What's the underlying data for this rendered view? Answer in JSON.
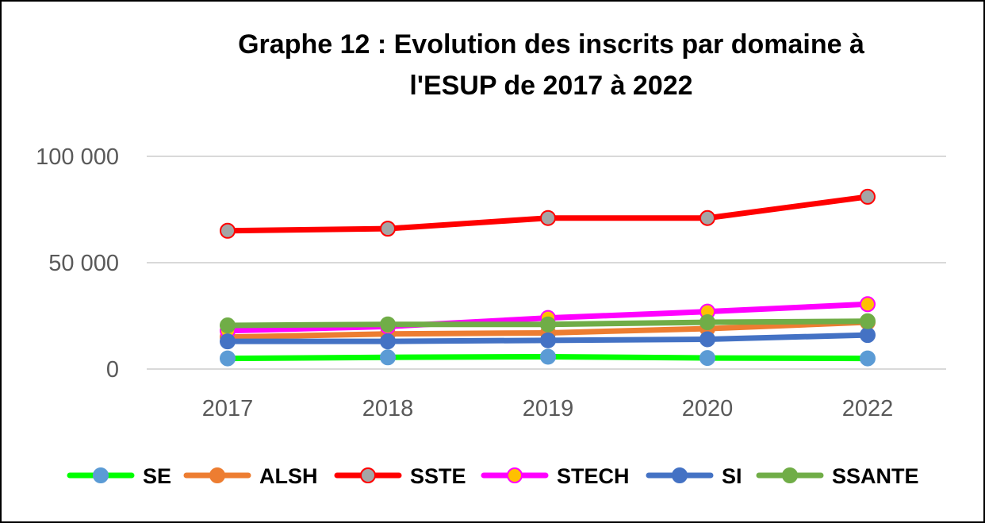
{
  "chart_data": {
    "type": "line",
    "title_lines": [
      "Graphe 12 : Evolution des inscrits par domaine à",
      "l'ESUP de 2017 à 2022"
    ],
    "categories": [
      "2017",
      "2018",
      "2019",
      "2020",
      "2022"
    ],
    "ylim": [
      0,
      100000
    ],
    "yticks": [
      {
        "value": 0,
        "label": "0"
      },
      {
        "value": 50000,
        "label": "50 000"
      },
      {
        "value": 100000,
        "label": "100 000"
      }
    ],
    "grid": true,
    "legend_position": "bottom",
    "series": [
      {
        "name": "SE",
        "line_color": "#00ff00",
        "marker_fill": "#5b9bd5",
        "marker_stroke": "#5b9bd5",
        "values": [
          5000,
          5500,
          5800,
          5200,
          5000
        ]
      },
      {
        "name": "ALSH",
        "line_color": "#ed7d31",
        "marker_fill": "#ed7d31",
        "marker_stroke": "#ed7d31",
        "values": [
          15000,
          16500,
          17000,
          19000,
          22000
        ]
      },
      {
        "name": "SSTE",
        "line_color": "#ff0000",
        "marker_fill": "#a5a5a5",
        "marker_stroke": "#ff0000",
        "values": [
          65000,
          66000,
          71000,
          71000,
          81000
        ]
      },
      {
        "name": "STECH",
        "line_color": "#ff00ff",
        "marker_fill": "#ffc000",
        "marker_stroke": "#ff00ff",
        "values": [
          18000,
          20000,
          24000,
          27000,
          30500
        ]
      },
      {
        "name": "SI",
        "line_color": "#4472c4",
        "marker_fill": "#4472c4",
        "marker_stroke": "#4472c4",
        "values": [
          13000,
          13000,
          13500,
          14000,
          16000
        ]
      },
      {
        "name": "SSANTE",
        "line_color": "#70ad47",
        "marker_fill": "#70ad47",
        "marker_stroke": "#70ad47",
        "values": [
          20500,
          21000,
          21000,
          22000,
          22500
        ]
      }
    ]
  }
}
